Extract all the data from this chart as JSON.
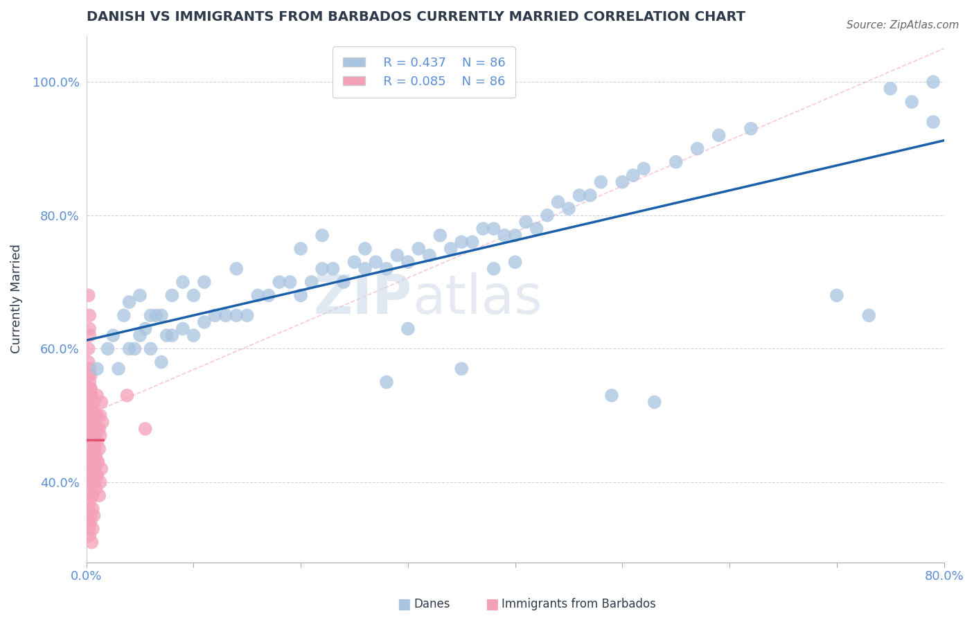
{
  "title": "DANISH VS IMMIGRANTS FROM BARBADOS CURRENTLY MARRIED CORRELATION CHART",
  "source": "Source: ZipAtlas.com",
  "ylabel_label": "Currently Married",
  "xmin": 0.0,
  "xmax": 0.8,
  "ymin": 0.28,
  "ymax": 1.07,
  "legend_danes_R": "R = 0.437",
  "legend_danes_N": "N = 86",
  "legend_immigrants_R": "R = 0.085",
  "legend_immigrants_N": "N = 86",
  "danes_color": "#a8c4e0",
  "immigrants_color": "#f4a0b8",
  "danes_line_color": "#1a5fa8",
  "immigrants_line_color": "#e05070",
  "dashed_line_color": "#f4a0b8",
  "background_color": "#ffffff",
  "title_color": "#2e3a4a",
  "watermark_text": "ZIPatlas",
  "danes_x": [
    0.01,
    0.02,
    0.025,
    0.03,
    0.035,
    0.04,
    0.04,
    0.045,
    0.05,
    0.05,
    0.055,
    0.06,
    0.06,
    0.065,
    0.07,
    0.07,
    0.075,
    0.08,
    0.08,
    0.09,
    0.09,
    0.1,
    0.1,
    0.11,
    0.11,
    0.12,
    0.13,
    0.14,
    0.14,
    0.15,
    0.16,
    0.17,
    0.18,
    0.19,
    0.2,
    0.2,
    0.21,
    0.22,
    0.22,
    0.23,
    0.24,
    0.25,
    0.26,
    0.27,
    0.28,
    0.29,
    0.3,
    0.31,
    0.32,
    0.33,
    0.34,
    0.35,
    0.36,
    0.37,
    0.38,
    0.39,
    0.4,
    0.41,
    0.42,
    0.43,
    0.44,
    0.45,
    0.46,
    0.47,
    0.48,
    0.5,
    0.51,
    0.52,
    0.55,
    0.57,
    0.59,
    0.62,
    0.3,
    0.35,
    0.26,
    0.28,
    0.38,
    0.49,
    0.75,
    0.77,
    0.79,
    0.79,
    0.7,
    0.73,
    0.4,
    0.53
  ],
  "danes_y": [
    0.57,
    0.6,
    0.62,
    0.57,
    0.65,
    0.6,
    0.67,
    0.6,
    0.62,
    0.68,
    0.63,
    0.6,
    0.65,
    0.65,
    0.58,
    0.65,
    0.62,
    0.62,
    0.68,
    0.63,
    0.7,
    0.62,
    0.68,
    0.64,
    0.7,
    0.65,
    0.65,
    0.65,
    0.72,
    0.65,
    0.68,
    0.68,
    0.7,
    0.7,
    0.68,
    0.75,
    0.7,
    0.72,
    0.77,
    0.72,
    0.7,
    0.73,
    0.72,
    0.73,
    0.72,
    0.74,
    0.73,
    0.75,
    0.74,
    0.77,
    0.75,
    0.76,
    0.76,
    0.78,
    0.78,
    0.77,
    0.77,
    0.79,
    0.78,
    0.8,
    0.82,
    0.81,
    0.83,
    0.83,
    0.85,
    0.85,
    0.86,
    0.87,
    0.88,
    0.9,
    0.92,
    0.93,
    0.63,
    0.57,
    0.75,
    0.55,
    0.72,
    0.53,
    0.99,
    0.97,
    1.0,
    0.94,
    0.68,
    0.65,
    0.73,
    0.52
  ],
  "immigrants_x": [
    0.002,
    0.002,
    0.003,
    0.003,
    0.003,
    0.004,
    0.004,
    0.004,
    0.005,
    0.005,
    0.005,
    0.005,
    0.005,
    0.005,
    0.005,
    0.005,
    0.006,
    0.006,
    0.006,
    0.007,
    0.007,
    0.007,
    0.007,
    0.007,
    0.008,
    0.008,
    0.008,
    0.009,
    0.009,
    0.009,
    0.01,
    0.01,
    0.01,
    0.01,
    0.01,
    0.01,
    0.012,
    0.012,
    0.013,
    0.013,
    0.014,
    0.015,
    0.002,
    0.002,
    0.003,
    0.003,
    0.004,
    0.004,
    0.005,
    0.005,
    0.006,
    0.006,
    0.007,
    0.008,
    0.009,
    0.01,
    0.011,
    0.012,
    0.013,
    0.014,
    0.002,
    0.002,
    0.003,
    0.004,
    0.005,
    0.006,
    0.002,
    0.003,
    0.004,
    0.005,
    0.006,
    0.007,
    0.002,
    0.003,
    0.003,
    0.004,
    0.004,
    0.005,
    0.002,
    0.002,
    0.003,
    0.003,
    0.038,
    0.055,
    0.003,
    0.002
  ],
  "immigrants_y": [
    0.48,
    0.52,
    0.5,
    0.53,
    0.47,
    0.51,
    0.54,
    0.47,
    0.46,
    0.49,
    0.51,
    0.53,
    0.5,
    0.48,
    0.44,
    0.47,
    0.48,
    0.51,
    0.45,
    0.49,
    0.52,
    0.46,
    0.44,
    0.5,
    0.48,
    0.45,
    0.42,
    0.5,
    0.47,
    0.44,
    0.5,
    0.48,
    0.46,
    0.43,
    0.53,
    0.41,
    0.48,
    0.45,
    0.5,
    0.47,
    0.52,
    0.49,
    0.4,
    0.43,
    0.42,
    0.39,
    0.41,
    0.44,
    0.4,
    0.43,
    0.41,
    0.38,
    0.42,
    0.4,
    0.39,
    0.41,
    0.43,
    0.38,
    0.4,
    0.42,
    0.36,
    0.34,
    0.37,
    0.35,
    0.38,
    0.36,
    0.33,
    0.32,
    0.34,
    0.31,
    0.33,
    0.35,
    0.56,
    0.55,
    0.57,
    0.54,
    0.56,
    0.53,
    0.6,
    0.58,
    0.62,
    0.63,
    0.53,
    0.48,
    0.65,
    0.68
  ]
}
